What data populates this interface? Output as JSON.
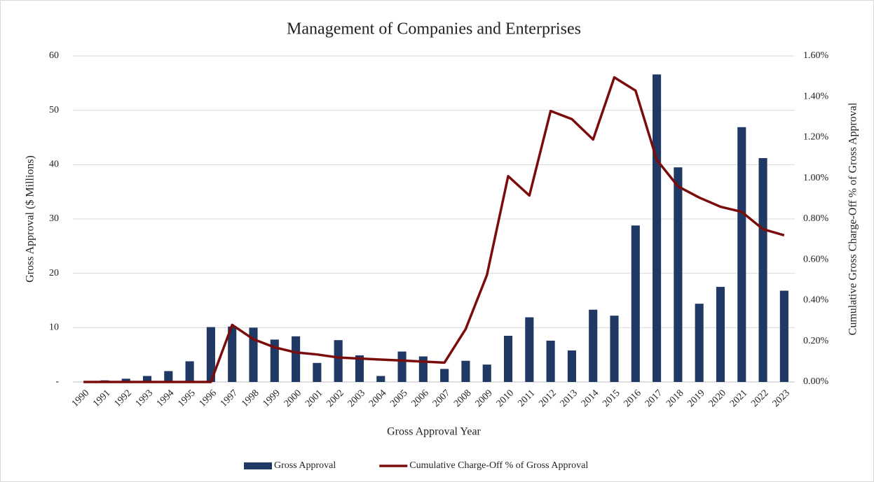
{
  "chart_data": {
    "type": "bar+line",
    "title": "Management of Companies and Enterprises",
    "xlabel": "Gross Approval Year",
    "ylabel": "Gross Approval ($ Millions)",
    "y2label": "Cumulative Gross Charge-Off % of Gross Approval",
    "categories": [
      "1990",
      "1991",
      "1992",
      "1993",
      "1994",
      "1995",
      "1996",
      "1997",
      "1998",
      "1999",
      "2000",
      "2001",
      "2002",
      "2003",
      "2004",
      "2005",
      "2006",
      "2007",
      "2008",
      "2009",
      "2010",
      "2011",
      "2012",
      "2013",
      "2014",
      "2015",
      "2016",
      "2017",
      "2018",
      "2019",
      "2020",
      "2021",
      "2022",
      "2023"
    ],
    "series": [
      {
        "name": "Gross Approval",
        "type": "bar",
        "color": "#1f3864",
        "axis": "y",
        "values": [
          0,
          0.3,
          0.6,
          1.1,
          2.0,
          3.8,
          10.1,
          10.2,
          10.0,
          7.8,
          8.4,
          3.5,
          7.7,
          4.9,
          1.1,
          5.6,
          4.7,
          2.4,
          3.9,
          3.2,
          8.5,
          11.9,
          7.6,
          5.8,
          13.3,
          12.2,
          28.8,
          56.6,
          39.5,
          14.4,
          17.5,
          46.9,
          41.2,
          16.8
        ]
      },
      {
        "name": "Cumulative Charge-Off % of Gross Approval",
        "type": "line",
        "color": "#7b0c0c",
        "axis": "y2",
        "values": [
          0,
          0,
          0,
          0,
          0,
          0,
          0,
          0.28,
          0.21,
          0.17,
          0.145,
          0.135,
          0.12,
          0.115,
          0.11,
          0.105,
          0.1,
          0.095,
          0.26,
          0.525,
          1.01,
          0.915,
          1.33,
          1.29,
          1.19,
          1.495,
          1.43,
          1.09,
          0.96,
          0.905,
          0.86,
          0.835,
          0.75,
          0.72
        ]
      }
    ],
    "ylim": [
      0,
      60
    ],
    "yticks": [
      {
        "value": 0,
        "label": "-"
      },
      10,
      20,
      30,
      40,
      50,
      60
    ],
    "y2lim": [
      0,
      1.6
    ],
    "y2ticks": [
      {
        "value": 0,
        "label": "0.00%"
      },
      {
        "value": 0.2,
        "label": "0.20%"
      },
      {
        "value": 0.4,
        "label": "0.40%"
      },
      {
        "value": 0.6,
        "label": "0.60%"
      },
      {
        "value": 0.8,
        "label": "0.80%"
      },
      {
        "value": 1.0,
        "label": "1.00%"
      },
      {
        "value": 1.2,
        "label": "1.20%"
      },
      {
        "value": 1.4,
        "label": "1.40%"
      },
      {
        "value": 1.6,
        "label": "1.60%"
      }
    ],
    "grid": true,
    "legend": "bottom"
  }
}
